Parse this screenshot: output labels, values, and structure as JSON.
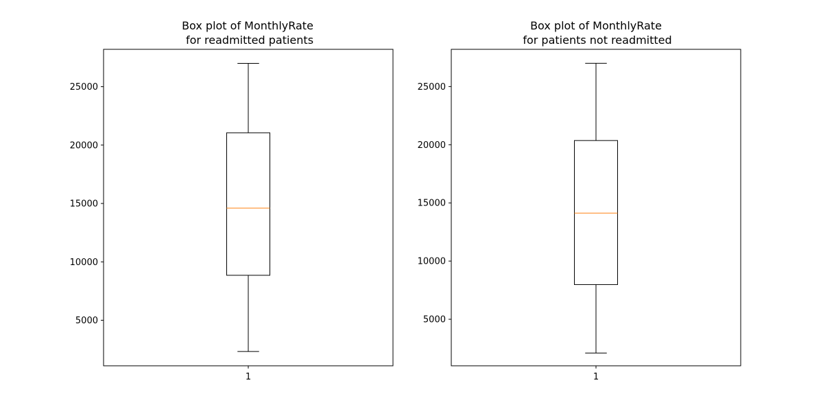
{
  "chart_data": [
    {
      "type": "box",
      "title_lines": [
        "Box plot of MonthlyRate",
        "for readmitted patients"
      ],
      "categories": [
        "1"
      ],
      "ylim": [
        1100,
        28200
      ],
      "yticks": [
        5000,
        10000,
        15000,
        20000,
        25000
      ],
      "ytick_labels": [
        "5000",
        "10000",
        "15000",
        "20000",
        "25000"
      ],
      "box": {
        "whisker_low": 2326,
        "q1": 8850,
        "median": 14600,
        "q3": 21050,
        "whisker_high": 26999
      },
      "grid": false,
      "colors": {
        "box": "#000000",
        "median": "#ff7f0e"
      }
    },
    {
      "type": "box",
      "title_lines": [
        "Box plot of MonthlyRate",
        "for patients not readmitted"
      ],
      "categories": [
        "1"
      ],
      "ylim": [
        1000,
        28200
      ],
      "yticks": [
        5000,
        10000,
        15000,
        20000,
        25000
      ],
      "ytick_labels": [
        "5000",
        "10000",
        "15000",
        "20000",
        "25000"
      ],
      "box": {
        "whisker_low": 2094,
        "q1": 7980,
        "median": 14120,
        "q3": 20360,
        "whisker_high": 26999
      },
      "grid": false,
      "colors": {
        "box": "#000000",
        "median": "#ff7f0e"
      }
    }
  ]
}
